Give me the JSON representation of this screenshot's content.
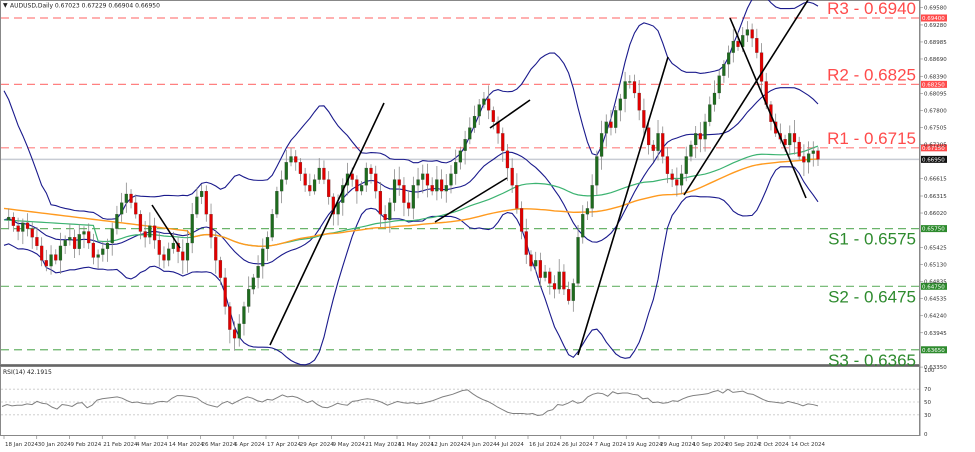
{
  "header": {
    "symbol": "AUDUSD,Daily",
    "ohlc": "0.67023 0.67229 0.66904 0.66950",
    "label": "AUDUSD,Daily  0.67023 0.67229 0.66904 0.66950"
  },
  "rsi_header": "RSI(14) 42.1915",
  "colors": {
    "bull": "#1e6b1e",
    "bear": "#e00000",
    "wick": "#8a8a8a",
    "bollinger": "#1a1a8c",
    "ma_green": "#3cb371",
    "ma_orange": "#ff9a1f",
    "resistance": "#ff4b4b",
    "support": "#2e8b2e",
    "current": "#111111",
    "trend": "#000000",
    "rsi": "#808080"
  },
  "levels": [
    {
      "name": "R3",
      "value": 0.694,
      "label": "R3 - 0.6940",
      "tag": "0.69400",
      "type": "resistance"
    },
    {
      "name": "R2",
      "value": 0.6825,
      "label": "R2 - 0.6825",
      "tag": "0.68250",
      "type": "resistance"
    },
    {
      "name": "R1",
      "value": 0.6715,
      "label": "R1 - 0.6715",
      "tag": "0.67150",
      "type": "resistance"
    },
    {
      "name": "S1",
      "value": 0.6575,
      "label": "S1 - 0.6575",
      "tag": "0.65750",
      "type": "support"
    },
    {
      "name": "S2",
      "value": 0.6475,
      "label": "S2 - 0.6475",
      "tag": "0.64750",
      "type": "support"
    },
    {
      "name": "S3",
      "value": 0.6365,
      "label": "S3 - 0.6365",
      "tag": "0.63650",
      "type": "support"
    }
  ],
  "current_price": {
    "value": 0.6695,
    "tag": "0.66950"
  },
  "price_axis_ticks": [
    "0.69580",
    "0.69280",
    "0.68985",
    "0.68690",
    "0.68390",
    "0.68095",
    "0.67800",
    "0.67505",
    "0.67205",
    "0.66615",
    "0.66315",
    "0.66020",
    "0.65425",
    "0.65130",
    "0.64835",
    "0.64535",
    "0.64240",
    "0.63945",
    "0.63350"
  ],
  "rsi_axis_ticks": [
    "100",
    "70",
    "50",
    "30",
    "0"
  ],
  "time_axis_ticks": [
    "18 Jan 2024",
    "30 Jan 2024",
    "9 Feb 2024",
    "21 Feb 2024",
    "4 Mar 2024",
    "14 Mar 2024",
    "26 Mar 2024",
    "5 Apr 2024",
    "17 Apr 2024",
    "29 Apr 2024",
    "9 May 2024",
    "21 May 2024",
    "31 May 2024",
    "12 Jun 2024",
    "24 Jun 2024",
    "4 Jul 2024",
    "16 Jul 2024",
    "26 Jul 2024",
    "7 Aug 2024",
    "19 Aug 2024",
    "29 Aug 2024",
    "10 Sep 2024",
    "20 Sep 2024",
    "2 Oct 2024",
    "14 Oct 2024"
  ],
  "chart_data": {
    "type": "candlestick",
    "title": "AUDUSD,Daily",
    "ylim": [
      0.6325,
      0.696
    ],
    "x_labels": [
      "18 Jan 2024",
      "30 Jan 2024",
      "9 Feb 2024",
      "21 Feb 2024",
      "4 Mar 2024",
      "14 Mar 2024",
      "26 Mar 2024",
      "5 Apr 2024",
      "17 Apr 2024",
      "29 Apr 2024",
      "9 May 2024",
      "21 May 2024",
      "31 May 2024",
      "12 Jun 2024",
      "24 Jun 2024",
      "4 Jul 2024",
      "16 Jul 2024",
      "26 Jul 2024",
      "7 Aug 2024",
      "19 Aug 2024",
      "29 Aug 2024",
      "10 Sep 2024",
      "20 Sep 2024",
      "2 Oct 2024",
      "14 Oct 2024"
    ],
    "close_path": [
      0.659,
      0.6595,
      0.658,
      0.657,
      0.6585,
      0.6575,
      0.656,
      0.6545,
      0.652,
      0.651,
      0.653,
      0.652,
      0.6545,
      0.6555,
      0.656,
      0.654,
      0.6565,
      0.657,
      0.655,
      0.6525,
      0.653,
      0.654,
      0.655,
      0.6575,
      0.66,
      0.662,
      0.6635,
      0.662,
      0.66,
      0.657,
      0.656,
      0.658,
      0.6555,
      0.653,
      0.652,
      0.654,
      0.655,
      0.6535,
      0.652,
      0.655,
      0.66,
      0.663,
      0.664,
      0.66,
      0.656,
      0.652,
      0.649,
      0.644,
      0.64,
      0.6385,
      0.641,
      0.644,
      0.647,
      0.649,
      0.651,
      0.654,
      0.656,
      0.66,
      0.664,
      0.666,
      0.669,
      0.67,
      0.669,
      0.667,
      0.665,
      0.664,
      0.666,
      0.668,
      0.666,
      0.663,
      0.66,
      0.662,
      0.665,
      0.667,
      0.666,
      0.664,
      0.665,
      0.668,
      0.667,
      0.664,
      0.66,
      0.659,
      0.662,
      0.666,
      0.665,
      0.662,
      0.661,
      0.665,
      0.666,
      0.667,
      0.665,
      0.664,
      0.666,
      0.664,
      0.665,
      0.667,
      0.669,
      0.671,
      0.673,
      0.675,
      0.677,
      0.679,
      0.68,
      0.678,
      0.676,
      0.674,
      0.671,
      0.668,
      0.665,
      0.661,
      0.657,
      0.653,
      0.651,
      0.652,
      0.649,
      0.65,
      0.648,
      0.647,
      0.65,
      0.647,
      0.645,
      0.648,
      0.656,
      0.66,
      0.661,
      0.665,
      0.67,
      0.674,
      0.676,
      0.675,
      0.678,
      0.68,
      0.683,
      0.683,
      0.681,
      0.678,
      0.675,
      0.672,
      0.671,
      0.674,
      0.67,
      0.667,
      0.666,
      0.665,
      0.667,
      0.67,
      0.672,
      0.674,
      0.673,
      0.676,
      0.679,
      0.681,
      0.684,
      0.686,
      0.688,
      0.69,
      0.689,
      0.691,
      0.692,
      0.6905,
      0.688,
      0.683,
      0.679,
      0.676,
      0.674,
      0.673,
      0.672,
      0.674,
      0.6725,
      0.67,
      0.669,
      0.6705,
      0.671,
      0.6695
    ],
    "rsi_values": [
      43,
      46,
      44,
      45,
      45,
      47,
      46,
      51,
      48,
      47,
      42,
      39,
      46,
      45,
      43,
      48,
      49,
      41,
      45,
      53,
      55,
      56,
      57,
      58,
      56,
      52,
      49,
      50,
      48,
      47,
      47,
      50,
      51,
      50,
      56,
      60,
      60,
      59,
      58,
      56,
      50,
      46,
      44,
      42,
      48,
      51,
      47,
      51,
      55,
      58,
      56,
      52,
      50,
      54,
      53,
      57,
      61,
      58,
      59,
      57,
      53,
      49,
      52,
      46,
      42,
      41,
      44,
      48,
      46,
      45,
      51,
      52,
      54,
      55,
      54,
      52,
      49,
      45,
      48,
      51,
      49,
      48,
      49,
      47,
      48,
      50,
      52,
      55,
      58,
      60,
      62,
      65,
      68,
      69,
      63,
      58,
      54,
      51,
      47,
      42,
      38,
      34,
      32,
      32,
      32,
      31,
      32,
      29,
      30,
      36,
      38,
      46,
      45,
      48,
      52,
      48,
      50,
      58,
      62,
      64,
      63,
      59,
      66,
      63,
      64,
      64,
      62,
      61,
      55,
      56,
      49,
      50,
      48,
      49,
      52,
      51,
      55,
      58,
      60,
      61,
      62,
      63,
      66,
      68,
      64,
      70,
      65,
      66,
      67,
      63,
      62,
      58,
      54,
      51,
      50,
      49,
      48,
      51,
      49,
      47,
      44,
      47,
      46,
      44
    ]
  }
}
